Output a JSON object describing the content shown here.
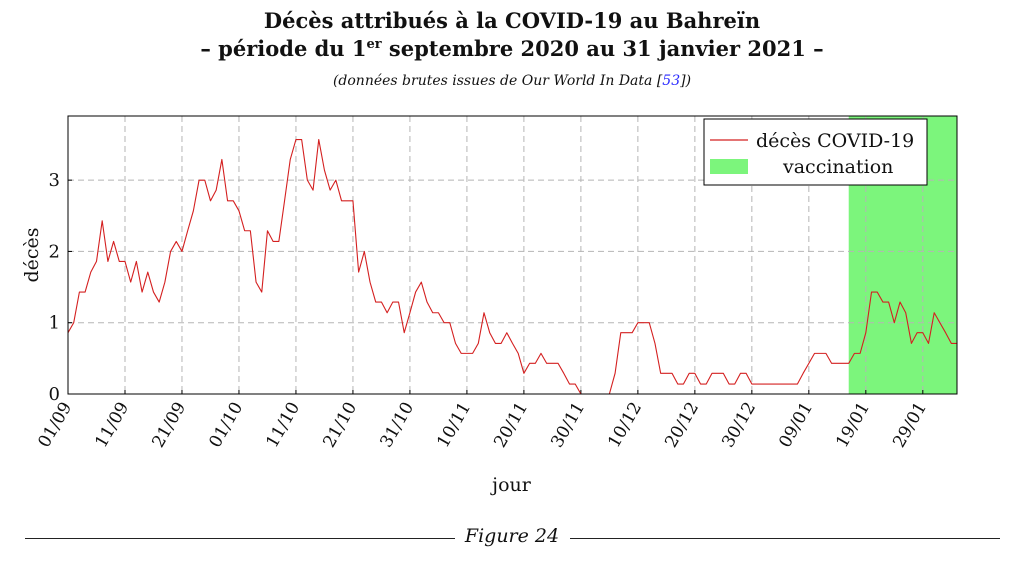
{
  "page": {
    "title_line1": "Décès attribués à la COVID-19 au Bahreïn",
    "title_line2_prefix": "– période du 1",
    "title_line2_sup": "er",
    "title_line2_suffix": " septembre 2020 au 31 janvier 2021 –",
    "subtitle_prefix": "(données brutes issues de Our World In Data [",
    "subtitle_ref": "53",
    "subtitle_suffix": "])",
    "figure_caption": "Figure 24"
  },
  "chart_data": {
    "type": "line",
    "xlabel": "jour",
    "ylabel": "décès",
    "x_start": "2020-09-01",
    "xlim": [
      "2020-09-01",
      "2021-02-04"
    ],
    "ylim": [
      0,
      3.9
    ],
    "yticks": [
      0,
      1,
      2,
      3
    ],
    "xtick_labels": [
      "01/09",
      "11/09",
      "21/09",
      "01/10",
      "11/10",
      "21/10",
      "31/10",
      "10/11",
      "20/11",
      "30/11",
      "10/12",
      "20/12",
      "30/12",
      "09/01",
      "19/01",
      "29/01"
    ],
    "grid": true,
    "legend_position": "top-right",
    "series": [
      {
        "name": "décès COVID-19",
        "color": "#d42020",
        "values": [
          0.86,
          1.0,
          1.43,
          1.43,
          1.71,
          1.86,
          2.43,
          1.86,
          2.14,
          1.86,
          1.86,
          1.57,
          1.86,
          1.43,
          1.71,
          1.43,
          1.29,
          1.57,
          2.0,
          2.14,
          2.0,
          2.29,
          2.57,
          3.0,
          3.0,
          2.71,
          2.86,
          3.29,
          2.71,
          2.71,
          2.57,
          2.29,
          2.29,
          1.57,
          1.43,
          2.29,
          2.14,
          2.14,
          2.71,
          3.29,
          3.57,
          3.57,
          3.0,
          2.86,
          3.57,
          3.14,
          2.86,
          3.0,
          2.71,
          2.71,
          2.71,
          1.71,
          2.0,
          1.57,
          1.29,
          1.29,
          1.14,
          1.29,
          1.29,
          0.86,
          1.14,
          1.43,
          1.57,
          1.29,
          1.14,
          1.14,
          1.0,
          1.0,
          0.71,
          0.57,
          0.57,
          0.57,
          0.71,
          1.14,
          0.86,
          0.71,
          0.71,
          0.86,
          0.71,
          0.57,
          0.29,
          0.43,
          0.43,
          0.57,
          0.43,
          0.43,
          0.43,
          0.29,
          0.14,
          0.14,
          0.0,
          0.0,
          0.0,
          0.0,
          0.0,
          0.0,
          0.29,
          0.86,
          0.86,
          0.86,
          1.0,
          1.0,
          1.0,
          0.71,
          0.29,
          0.29,
          0.29,
          0.14,
          0.14,
          0.29,
          0.29,
          0.14,
          0.14,
          0.29,
          0.29,
          0.29,
          0.14,
          0.14,
          0.29,
          0.29,
          0.14,
          0.14,
          0.14,
          0.14,
          0.14,
          0.14,
          0.14,
          0.14,
          0.14,
          0.29,
          0.43,
          0.57,
          0.57,
          0.57,
          0.43,
          0.43,
          0.43,
          0.43,
          0.57,
          0.57,
          0.86,
          1.43,
          1.43,
          1.29,
          1.29,
          1.0,
          1.29,
          1.14,
          0.71,
          0.86,
          0.86,
          0.71,
          1.14,
          1.0,
          0.86,
          0.71,
          0.71
        ]
      }
    ],
    "shaded_region": {
      "name": "vaccination",
      "color": "#7cf57c",
      "x_start": "2021-01-16",
      "x_end": "2021-02-04"
    }
  }
}
